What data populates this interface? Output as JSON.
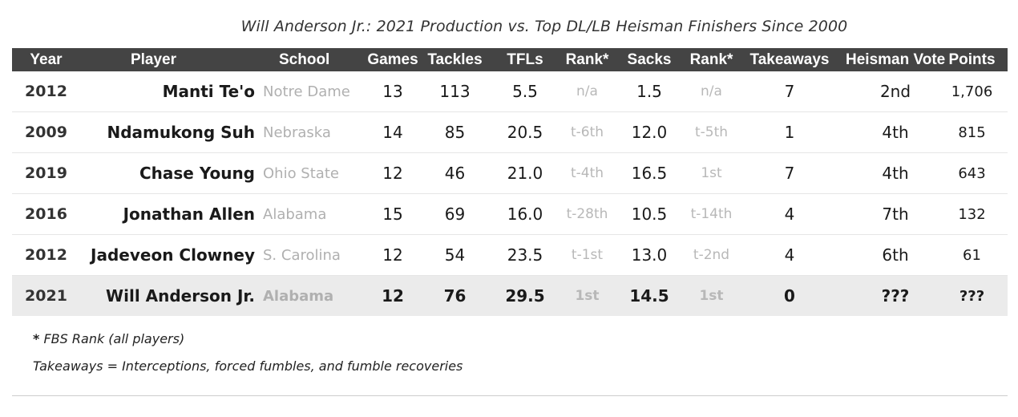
{
  "title": "Will Anderson Jr.: 2021 Production vs. Top DL/LB Heisman Finishers Since 2000",
  "chart_data": {
    "type": "table",
    "columns": [
      "Year",
      "Player",
      "School",
      "Games",
      "Tackles",
      "TFLs",
      "Rank*",
      "Sacks",
      "Rank*",
      "Takeaways",
      "Heisman Vote",
      "Points"
    ],
    "rows": [
      {
        "year": "2012",
        "player": "Manti Te'o",
        "school": "Notre Dame",
        "games": "13",
        "tackles": "113",
        "tfl": "5.5",
        "tfl_rank": "n/a",
        "sacks": "1.5",
        "sacks_rank": "n/a",
        "takeaways": "7",
        "heisman": "2nd",
        "points": "1,706"
      },
      {
        "year": "2009",
        "player": "Ndamukong Suh",
        "school": "Nebraska",
        "games": "14",
        "tackles": "85",
        "tfl": "20.5",
        "tfl_rank": "t-6th",
        "sacks": "12.0",
        "sacks_rank": "t-5th",
        "takeaways": "1",
        "heisman": "4th",
        "points": "815"
      },
      {
        "year": "2019",
        "player": "Chase Young",
        "school": "Ohio State",
        "games": "12",
        "tackles": "46",
        "tfl": "21.0",
        "tfl_rank": "t-4th",
        "sacks": "16.5",
        "sacks_rank": "1st",
        "takeaways": "7",
        "heisman": "4th",
        "points": "643"
      },
      {
        "year": "2016",
        "player": "Jonathan Allen",
        "school": "Alabama",
        "games": "15",
        "tackles": "69",
        "tfl": "16.0",
        "tfl_rank": "t-28th",
        "sacks": "10.5",
        "sacks_rank": "t-14th",
        "takeaways": "4",
        "heisman": "7th",
        "points": "132"
      },
      {
        "year": "2012",
        "player": "Jadeveon Clowney",
        "school": "S. Carolina",
        "games": "12",
        "tackles": "54",
        "tfl": "23.5",
        "tfl_rank": "t-1st",
        "sacks": "13.0",
        "sacks_rank": "t-2nd",
        "takeaways": "4",
        "heisman": "6th",
        "points": "61"
      },
      {
        "year": "2021",
        "player": "Will Anderson Jr.",
        "school": "Alabama",
        "games": "12",
        "tackles": "76",
        "tfl": "29.5",
        "tfl_rank": "1st",
        "sacks": "14.5",
        "sacks_rank": "1st",
        "takeaways": "0",
        "heisman": "???",
        "points": "???"
      }
    ]
  },
  "notes": {
    "star": "*",
    "rank_note": "FBS Rank (all players)",
    "takeaways_note": "Takeaways = Interceptions, forced fumbles, and fumble recoveries"
  }
}
